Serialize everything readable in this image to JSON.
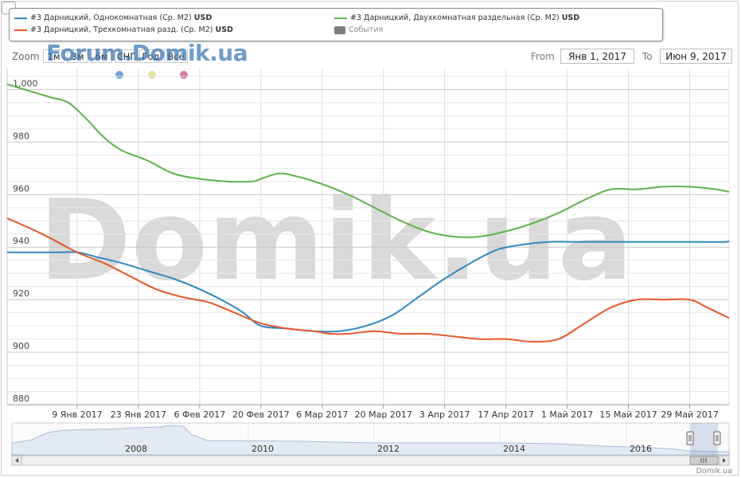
{
  "legend": {
    "items": [
      {
        "label": "#3 Дарницкий, Однокомнатная (Ср. М2)",
        "currency": "USD",
        "color": "#2f87c0"
      },
      {
        "label": "#3 Дарницкий, Трехкомнатная разд. (Ср. М2)",
        "currency": "USD",
        "color": "#e8562a"
      },
      {
        "label": "#3 Дарницкий, Двухкомнатная раздельная (Ср. М2)",
        "currency": "USD",
        "color": "#5db34b"
      }
    ],
    "events_label": "События"
  },
  "zoom": {
    "label": "Zoom",
    "buttons": [
      "1м",
      "3м",
      "6м",
      "СНГ",
      "Год",
      "Всё"
    ]
  },
  "range": {
    "from_label": "From",
    "from_value": "Янв 1, 2017",
    "to_label": "To",
    "to_value": "Июн 9, 2017"
  },
  "watermarks": {
    "top": "Forum.Domik.ua",
    "big": "Domik.ua",
    "footer": "Domik.ua"
  },
  "indicator_dots": [
    "#6fa3d6",
    "#dfe29a",
    "#d97aa6"
  ],
  "chart_data": {
    "type": "line",
    "ylim": [
      880,
      1008
    ],
    "y_ticks": [
      880,
      900,
      920,
      940,
      960,
      980,
      1000
    ],
    "y_tick_labels": [
      "880",
      "900",
      "920",
      "940",
      "960",
      "980",
      "1,000"
    ],
    "x_range_days": [
      -8,
      157
    ],
    "x_ticks": [
      {
        "day": 8,
        "label": "9 Янв 2017"
      },
      {
        "day": 22,
        "label": "23 Янв 2017"
      },
      {
        "day": 36,
        "label": "6 Фев 2017"
      },
      {
        "day": 50,
        "label": "20 Фев 2017"
      },
      {
        "day": 64,
        "label": "6 Мар 2017"
      },
      {
        "day": 78,
        "label": "20 Мар 2017"
      },
      {
        "day": 92,
        "label": "3 Апр 2017"
      },
      {
        "day": 106,
        "label": "17 Апр 2017"
      },
      {
        "day": 120,
        "label": "1 Май 2017"
      },
      {
        "day": 134,
        "label": "15 Май 2017"
      },
      {
        "day": 148,
        "label": "29 Май 2017"
      }
    ],
    "series": [
      {
        "name": "#3 Дарницкий, Однокомнатная (Ср. М2)",
        "color": "#2f87c0",
        "x": [
          -8,
          3,
          8,
          13,
          18,
          24,
          30,
          36,
          42,
          46,
          50,
          56,
          62,
          68,
          74,
          80,
          86,
          92,
          98,
          104,
          110,
          116,
          122,
          130,
          140,
          150,
          156,
          160
        ],
        "y": [
          938,
          938,
          938,
          936,
          934,
          931,
          928,
          924,
          919,
          915,
          910,
          909,
          908,
          908,
          910,
          914,
          921,
          928,
          934,
          939,
          941,
          942,
          942,
          942,
          942,
          942,
          942,
          943
        ]
      },
      {
        "name": "#3 Дарницкий, Трехкомнатная разд. (Ср. М2)",
        "color": "#e8562a",
        "x": [
          -8,
          0,
          8,
          14,
          20,
          26,
          32,
          38,
          44,
          50,
          56,
          62,
          66,
          70,
          76,
          82,
          88,
          94,
          100,
          106,
          112,
          118,
          124,
          130,
          136,
          142,
          148,
          152,
          157
        ],
        "y": [
          951,
          945,
          938,
          934,
          929,
          924,
          921,
          919,
          915,
          911,
          909,
          908,
          907,
          907,
          908,
          907,
          907,
          906,
          905,
          905,
          904,
          905,
          911,
          917,
          920,
          920,
          920,
          917,
          913
        ]
      },
      {
        "name": "#3 Дарницкий, Двухкомнатная раздельная (Ср. М2)",
        "color": "#5db34b",
        "x": [
          -8,
          -2,
          2,
          6,
          10,
          14,
          18,
          24,
          30,
          36,
          42,
          48,
          50,
          54,
          58,
          64,
          70,
          76,
          82,
          88,
          94,
          100,
          106,
          112,
          118,
          124,
          130,
          136,
          142,
          148,
          154,
          157
        ],
        "y": [
          1002,
          999,
          997,
          995,
          989,
          982,
          977,
          973,
          968,
          966,
          965,
          965,
          966,
          968,
          967,
          964,
          960,
          955,
          950,
          946,
          944,
          944,
          946,
          949,
          953,
          958,
          962,
          962,
          963,
          963,
          962,
          961
        ]
      }
    ]
  },
  "navigator": {
    "years": [
      "2008",
      "2010",
      "2012",
      "2014",
      "2016"
    ]
  }
}
